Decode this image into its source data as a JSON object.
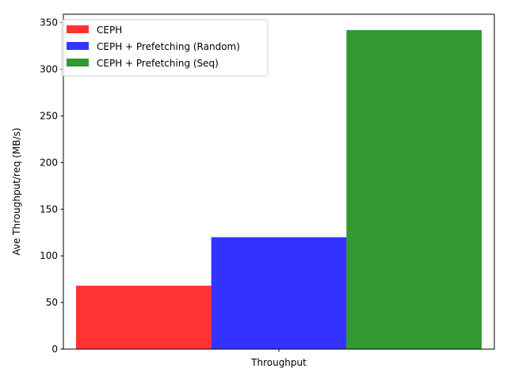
{
  "chart_data": {
    "type": "bar",
    "categories": [
      "Throughput"
    ],
    "series": [
      {
        "name": "CEPH",
        "values": [
          68
        ],
        "color": "#ff0000"
      },
      {
        "name": "CEPH + Prefetching (Random)",
        "values": [
          120
        ],
        "color": "#0000ff"
      },
      {
        "name": "CEPH + Prefetching (Seq)",
        "values": [
          342
        ],
        "color": "#008000"
      }
    ],
    "title": "",
    "xlabel": "",
    "ylabel": "Ave Throughput/req (MB/s)",
    "ylim": [
      0,
      359
    ],
    "yticks": [
      0,
      50,
      100,
      150,
      200,
      250,
      300,
      350
    ],
    "bar_opacity": 0.8,
    "grid": false,
    "legend_position": "upper-left"
  }
}
